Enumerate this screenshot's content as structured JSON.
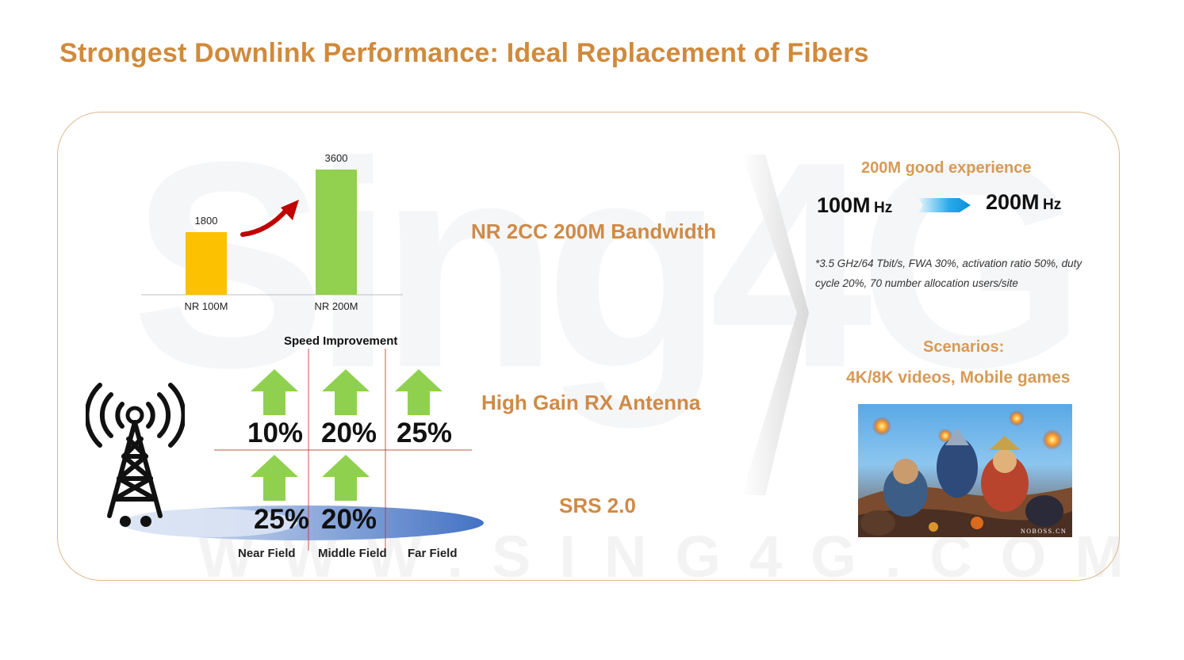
{
  "title": "Strongest Downlink Performance: Ideal Replacement of Fibers",
  "watermark": {
    "big": "Sing4G",
    "small": "WWW.SING4G.COM"
  },
  "chart_data": {
    "type": "bar",
    "categories": [
      "NR 100M",
      "NR 200M"
    ],
    "values": [
      1800,
      3600
    ],
    "colors": [
      "#fcc100",
      "#92d050"
    ],
    "title": "",
    "xlabel": "",
    "ylabel": "",
    "ylim": [
      0,
      3600
    ]
  },
  "features": {
    "bandwidth": "NR 2CC 200M Bandwidth",
    "antenna": "High Gain RX Antenna",
    "srs": "SRS 2.0"
  },
  "speed": {
    "title": "Speed Improvement",
    "top_row": [
      "10%",
      "20%",
      "25%"
    ],
    "bottom_row": [
      "25%",
      "20%"
    ],
    "fields": [
      "Near Field",
      "Middle Field",
      "Far Field"
    ]
  },
  "right": {
    "experience": "200M good experience",
    "from_num": "100M",
    "from_unit": "Hz",
    "to_num": "200M",
    "to_unit": "Hz",
    "footnote_line1": "*3.5 GHz/64 Tbit/s, FWA 30%, activation ratio 50%, duty",
    "footnote_line2": "cycle 20%, 70 number allocation users/site",
    "scenarios_title": "Scenarios:",
    "scenarios": "4K/8K videos, Mobile games",
    "image_caption": "NOBOSS.CN"
  },
  "colors": {
    "title": "#d08a3c",
    "accent": "#cf8a46",
    "arrow_green": "#8fd14f",
    "divider_red": "#c0392b",
    "ellipse_blue": "#4472c4"
  }
}
